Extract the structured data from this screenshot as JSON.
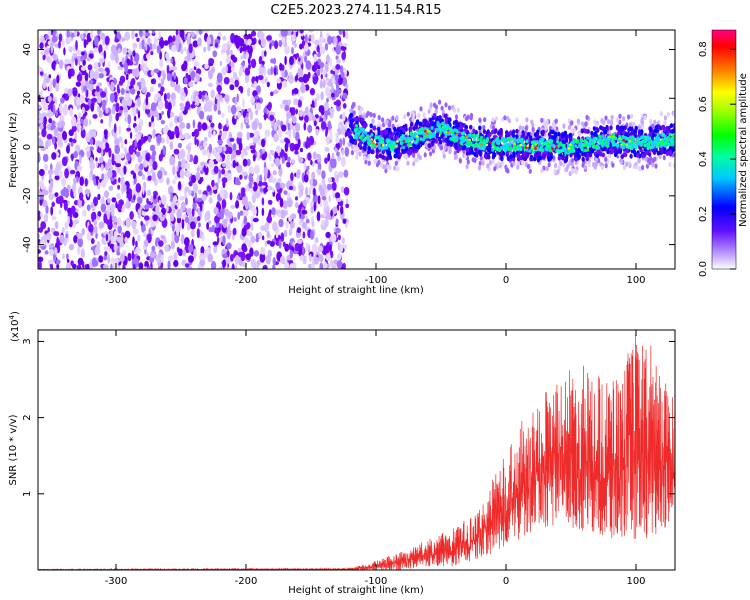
{
  "title": "C2E5.2023.274.11.54.R15",
  "colors": {
    "scatter": "#7a10ff",
    "snr_line": "#ee2a2a",
    "axis": "#000000"
  },
  "chart_data": [
    {
      "type": "heatmap",
      "title": "C2E5.2023.274.11.54.R15",
      "xlabel": "Height of straight line (km)",
      "ylabel": "Frequency (Hz)",
      "xlim": [
        -360,
        130
      ],
      "ylim": [
        -50,
        48
      ],
      "xticks": [
        -300,
        -200,
        -100,
        0,
        100
      ],
      "yticks": [
        -40,
        -20,
        0,
        20,
        40
      ],
      "noise_region_x": [
        -360,
        -122
      ],
      "signal_band": [
        {
          "x": -122,
          "y": 8
        },
        {
          "x": -110,
          "y": 5
        },
        {
          "x": -100,
          "y": 2
        },
        {
          "x": -90,
          "y": 1
        },
        {
          "x": -80,
          "y": 2
        },
        {
          "x": -70,
          "y": 4
        },
        {
          "x": -60,
          "y": 6
        },
        {
          "x": -50,
          "y": 8
        },
        {
          "x": -40,
          "y": 5
        },
        {
          "x": -30,
          "y": 3
        },
        {
          "x": -20,
          "y": 2
        },
        {
          "x": -10,
          "y": 1
        },
        {
          "x": 0,
          "y": 1
        },
        {
          "x": 10,
          "y": 1
        },
        {
          "x": 20,
          "y": 0
        },
        {
          "x": 30,
          "y": 1
        },
        {
          "x": 40,
          "y": 0
        },
        {
          "x": 50,
          "y": 0
        },
        {
          "x": 60,
          "y": 1
        },
        {
          "x": 70,
          "y": 2
        },
        {
          "x": 80,
          "y": 3
        },
        {
          "x": 90,
          "y": 2
        },
        {
          "x": 100,
          "y": 2
        },
        {
          "x": 110,
          "y": 2
        },
        {
          "x": 120,
          "y": 3
        },
        {
          "x": 130,
          "y": 3
        }
      ],
      "colorbar": {
        "label": "Normalized spectral amplitude",
        "range": [
          0.0,
          0.87
        ],
        "ticks": [
          "0.0",
          "0.2",
          "0.4",
          "0.6",
          "0.8"
        ],
        "tick_values": [
          0.0,
          0.2,
          0.4,
          0.6,
          0.8
        ]
      }
    },
    {
      "type": "line",
      "xlabel": "Height of straight line (km)",
      "ylabel": "SNR (10 * v/v)",
      "y_multiplier": "(x10",
      "y_multiplier_exp": "4",
      "y_multiplier_close": ")",
      "xlim": [
        -360,
        130
      ],
      "ylim": [
        0,
        3.15
      ],
      "xticks": [
        -300,
        -200,
        -100,
        0,
        100
      ],
      "yticks": [
        1,
        2,
        3
      ],
      "envelope": [
        {
          "x": -360,
          "low": 0.0,
          "high": 0.01
        },
        {
          "x": -120,
          "low": 0.0,
          "high": 0.02
        },
        {
          "x": -100,
          "low": 0.0,
          "high": 0.12
        },
        {
          "x": -80,
          "low": 0.0,
          "high": 0.25
        },
        {
          "x": -60,
          "low": 0.05,
          "high": 0.4
        },
        {
          "x": -40,
          "low": 0.05,
          "high": 0.55
        },
        {
          "x": -20,
          "low": 0.15,
          "high": 0.8
        },
        {
          "x": 0,
          "low": 0.3,
          "high": 1.6
        },
        {
          "x": 20,
          "low": 0.5,
          "high": 2.2
        },
        {
          "x": 40,
          "low": 0.6,
          "high": 2.6
        },
        {
          "x": 60,
          "low": 0.5,
          "high": 2.7
        },
        {
          "x": 80,
          "low": 0.4,
          "high": 2.5
        },
        {
          "x": 100,
          "low": 0.4,
          "high": 3.1
        },
        {
          "x": 115,
          "low": 0.4,
          "high": 2.9
        },
        {
          "x": 130,
          "low": 0.7,
          "high": 2.2
        }
      ]
    }
  ]
}
